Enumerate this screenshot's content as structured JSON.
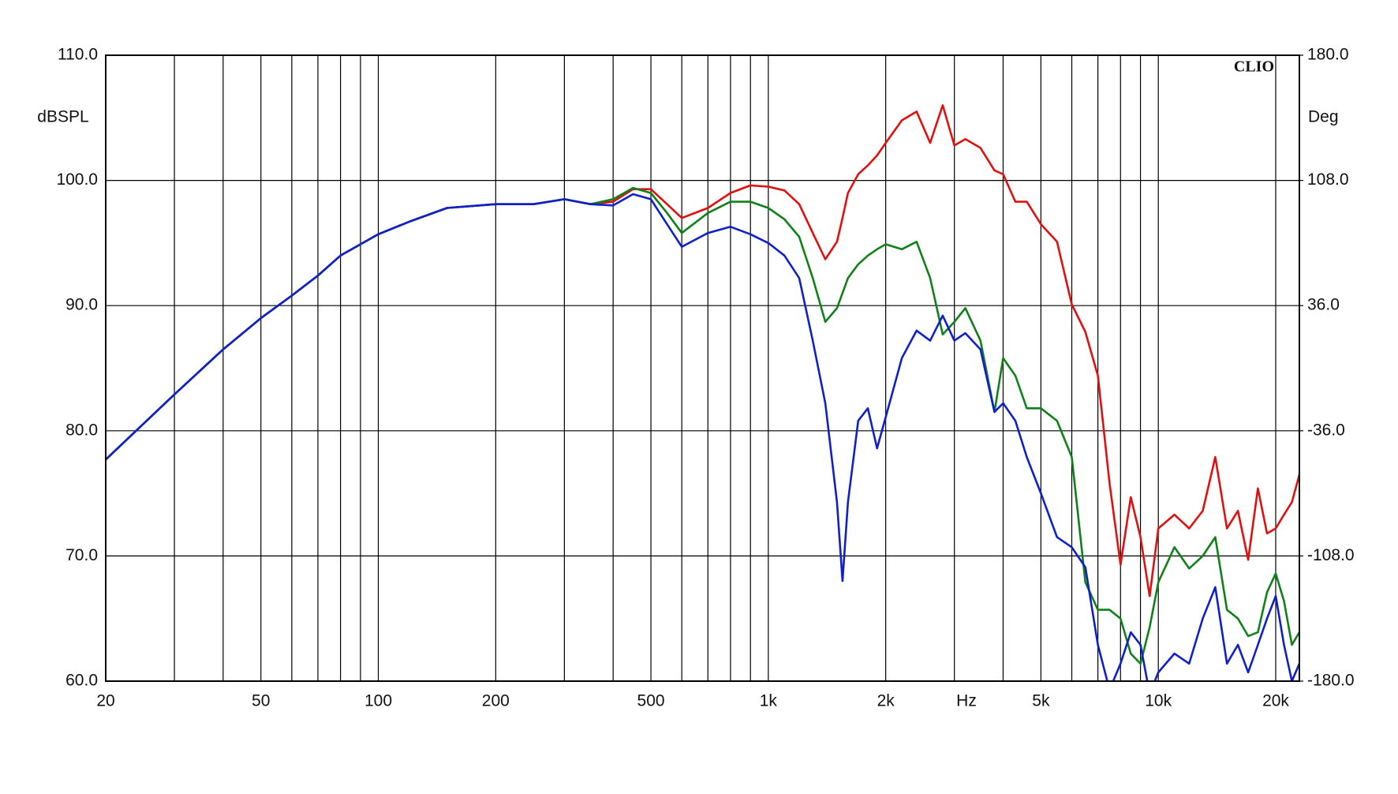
{
  "chart_data": {
    "type": "line",
    "brand": "CLIO",
    "y_label": "dBSPL",
    "y2_label": "Deg",
    "x_label": "Hz",
    "xscale": "log",
    "grid": true,
    "xlim": [
      20,
      23000
    ],
    "ylim": [
      60,
      110
    ],
    "y2lim": [
      -180,
      180
    ],
    "xticks": [
      20,
      50,
      100,
      200,
      500,
      {
        "value": 1000,
        "label": "1k"
      },
      {
        "value": 2000,
        "label": "2k"
      },
      {
        "value": 5000,
        "label": "5k"
      },
      {
        "value": 10000,
        "label": "10k"
      },
      {
        "value": 20000,
        "label": "20k"
      }
    ],
    "x_minor_gridlines": [
      30,
      40,
      60,
      70,
      80,
      90,
      300,
      400,
      600,
      700,
      800,
      900,
      3000,
      4000,
      6000,
      7000,
      8000,
      9000
    ],
    "yticks": [
      {
        "value": 60,
        "label": "60.0"
      },
      {
        "value": 70,
        "label": "70.0"
      },
      {
        "value": 80,
        "label": "80.0"
      },
      {
        "value": 90,
        "label": "90.0"
      },
      {
        "value": 100,
        "label": "100.0"
      },
      {
        "value": 110,
        "label": "110.0"
      }
    ],
    "y2ticks": [
      {
        "value": -180,
        "label": "-180.0"
      },
      {
        "value": -108,
        "label": "-108.0"
      },
      {
        "value": -36,
        "label": "-36.0"
      },
      {
        "value": 36,
        "label": "36.0"
      },
      {
        "value": 108,
        "label": "108.0"
      },
      {
        "value": 180,
        "label": "180.0"
      }
    ],
    "x": [
      20,
      30,
      40,
      50,
      60,
      70,
      80,
      100,
      120,
      150,
      200,
      250,
      300,
      350,
      400,
      450,
      500,
      550,
      600,
      700,
      800,
      900,
      1000,
      1100,
      1200,
      1300,
      1400,
      1500,
      1550,
      1600,
      1700,
      1800,
      1900,
      2000,
      2200,
      2400,
      2600,
      2800,
      3000,
      3200,
      3500,
      3800,
      4000,
      4300,
      4600,
      5000,
      5500,
      6000,
      6500,
      7000,
      7500,
      8000,
      8500,
      9000,
      9500,
      10000,
      11000,
      12000,
      13000,
      14000,
      15000,
      16000,
      17000,
      18000,
      19000,
      20000,
      21000,
      22000,
      23000
    ],
    "series": [
      {
        "color": "#e01010",
        "values": [
          77.7,
          82.9,
          86.5,
          89.0,
          90.8,
          92.4,
          94.0,
          95.7,
          96.7,
          97.8,
          98.1,
          98.1,
          98.5,
          98.1,
          98.3,
          99.3,
          99.3,
          98.1,
          97.0,
          97.8,
          99.0,
          99.6,
          99.5,
          99.2,
          98.1,
          95.8,
          93.7,
          95.1,
          97.0,
          99.0,
          100.5,
          101.2,
          102.0,
          103.0,
          104.8,
          105.5,
          103.0,
          106.0,
          102.8,
          103.3,
          102.6,
          100.8,
          100.5,
          98.3,
          98.3,
          96.5,
          95.1,
          90.1,
          87.9,
          84.4,
          75.8,
          69.3,
          74.7,
          71.5,
          66.8,
          72.2,
          73.3,
          72.2,
          73.6,
          77.9,
          72.2,
          73.6,
          69.7,
          75.4,
          71.8,
          72.2,
          73.3,
          74.3,
          76.5
        ]
      },
      {
        "color": "#10801a",
        "values": [
          77.7,
          82.9,
          86.5,
          89.0,
          90.8,
          92.4,
          94.0,
          95.7,
          96.7,
          97.8,
          98.1,
          98.1,
          98.5,
          98.1,
          98.5,
          99.4,
          99.0,
          97.4,
          95.8,
          97.4,
          98.3,
          98.3,
          97.8,
          96.9,
          95.5,
          92.2,
          88.7,
          89.8,
          91.0,
          92.2,
          93.3,
          94.0,
          94.5,
          94.9,
          94.5,
          95.1,
          92.2,
          87.7,
          88.7,
          89.8,
          87.2,
          81.5,
          85.8,
          84.4,
          81.8,
          81.8,
          80.8,
          77.9,
          67.9,
          65.7,
          65.7,
          65.0,
          62.2,
          61.4,
          64.3,
          67.9,
          70.7,
          69.0,
          70.0,
          71.5,
          65.7,
          65.0,
          63.6,
          63.9,
          67.1,
          68.6,
          66.4,
          62.9,
          63.9
        ]
      },
      {
        "color": "#1020c8",
        "values": [
          77.7,
          82.9,
          86.5,
          89.0,
          90.8,
          92.4,
          94.0,
          95.7,
          96.7,
          97.8,
          98.1,
          98.1,
          98.5,
          98.1,
          98.0,
          98.9,
          98.5,
          96.5,
          94.7,
          95.8,
          96.3,
          95.7,
          95.0,
          94.0,
          92.2,
          87.2,
          82.2,
          74.3,
          68.0,
          74.3,
          80.8,
          81.8,
          78.6,
          81.1,
          85.8,
          88.0,
          87.2,
          89.2,
          87.2,
          87.8,
          86.5,
          81.5,
          82.2,
          80.8,
          77.9,
          75.0,
          71.5,
          70.7,
          69.1,
          62.9,
          59.3,
          61.4,
          63.9,
          62.9,
          59.0,
          60.7,
          62.2,
          61.4,
          65.0,
          67.5,
          61.4,
          62.9,
          60.7,
          62.9,
          65.0,
          66.8,
          62.9,
          60.0,
          61.4
        ]
      }
    ]
  }
}
